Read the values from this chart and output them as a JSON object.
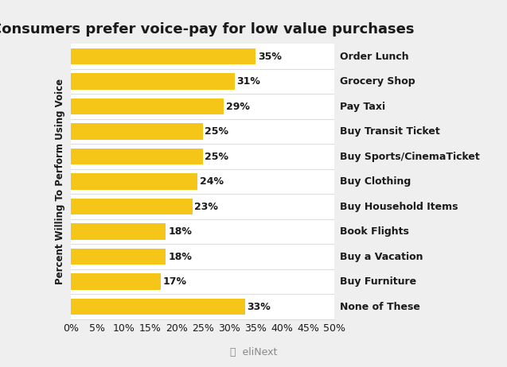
{
  "title": "Consumers prefer voice-pay for low value purchases",
  "ylabel": "Percent Willing To Perform Using Voice",
  "bar_color": "#F5C518",
  "bg_color": "#FFFFFF",
  "fig_bg_color": "#EFEFEF",
  "separator_color": "#DDDDDD",
  "categories": [
    "Order Lunch",
    "Grocery Shop",
    "Pay Taxi",
    "Buy Transit Ticket",
    "Buy Sports/CinemaTicket",
    "Buy Clothing",
    "Buy Household Items",
    "Book Flights",
    "Buy a Vacation",
    "Buy Furniture",
    "None of These"
  ],
  "values": [
    35,
    31,
    29,
    25,
    25,
    24,
    23,
    18,
    18,
    17,
    33
  ],
  "xlim": [
    0,
    50
  ],
  "xticks": [
    0,
    5,
    10,
    15,
    20,
    25,
    30,
    35,
    40,
    45,
    50
  ],
  "title_fontsize": 13,
  "label_fontsize": 9,
  "tick_fontsize": 9,
  "ylabel_fontsize": 8.5,
  "cat_fontsize": 9,
  "bar_height": 0.65,
  "text_color": "#1a1a1a"
}
